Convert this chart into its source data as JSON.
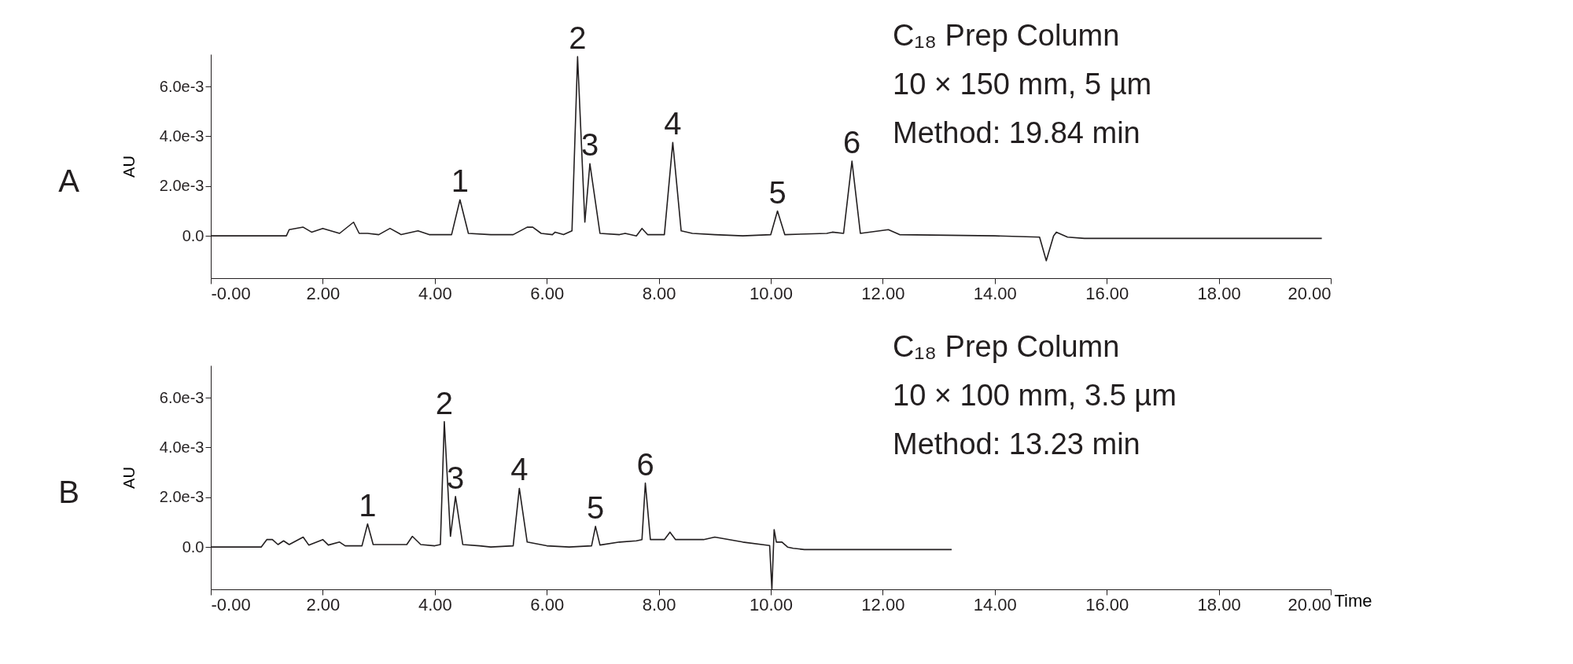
{
  "chart_data": [
    {
      "type": "line",
      "title": "A",
      "ylabel": "AU",
      "xlim": [
        0,
        20
      ],
      "ylim": [
        -0.0017,
        0.0073
      ],
      "xticks": [
        {
          "value": 0,
          "label": "-0.00"
        },
        {
          "value": 2,
          "label": "2.00"
        },
        {
          "value": 4,
          "label": "4.00"
        },
        {
          "value": 6,
          "label": "6.00"
        },
        {
          "value": 8,
          "label": "8.00"
        },
        {
          "value": 10,
          "label": "10.00"
        },
        {
          "value": 12,
          "label": "12.00"
        },
        {
          "value": 14,
          "label": "14.00"
        },
        {
          "value": 16,
          "label": "16.00"
        },
        {
          "value": 18,
          "label": "18.00"
        },
        {
          "value": 20,
          "label": "20.00"
        }
      ],
      "yticks": [
        {
          "value": 0,
          "label": "0.0"
        },
        {
          "value": 0.002,
          "label": "2.0e-3"
        },
        {
          "value": 0.004,
          "label": "4.0e-3"
        },
        {
          "value": 0.006,
          "label": "6.0e-3"
        }
      ],
      "grid": false,
      "line_style": "solid",
      "marker": "none",
      "series": [
        {
          "color": "#231f20",
          "x": [
            0,
            1.35,
            1.4,
            1.65,
            1.8,
            2.0,
            2.3,
            2.55,
            2.65,
            2.8,
            3.0,
            3.2,
            3.4,
            3.7,
            3.9,
            4.3,
            4.45,
            4.6,
            5.0,
            5.4,
            5.65,
            5.75,
            5.9,
            6.1,
            6.15,
            6.3,
            6.45,
            6.55,
            6.68,
            6.77,
            6.95,
            7.3,
            7.4,
            7.6,
            7.7,
            7.8,
            8.1,
            8.25,
            8.4,
            8.6,
            9.0,
            9.5,
            10.0,
            10.12,
            10.25,
            11.0,
            11.1,
            11.3,
            11.45,
            11.6,
            12.1,
            12.3,
            14.0,
            14.8,
            14.92,
            15.05,
            15.1,
            15.3,
            15.6,
            19.84
          ],
          "values": [
            0,
            0,
            0.00025,
            0.00035,
            0.00015,
            0.0003,
            0.0001,
            0.00055,
            0.0001,
            0.0001,
            5e-05,
            0.0003,
            5e-05,
            0.0002,
            5e-05,
            5e-05,
            0.00145,
            0.0001,
            5e-05,
            5e-05,
            0.00035,
            0.00035,
            0.0001,
            5e-05,
            0.00015,
            5e-05,
            0.0002,
            0.0072,
            0.00055,
            0.0029,
            0.0001,
            5e-05,
            0.0001,
            0,
            0.0003,
            5e-05,
            5e-05,
            0.00375,
            0.0002,
            0.0001,
            5e-05,
            0,
            5e-05,
            0.001,
            5e-05,
            0.0001,
            0.00015,
            0.0001,
            0.003,
            0.0001,
            0.00025,
            5e-05,
            0,
            -5e-05,
            -0.001,
            0,
            0.00015,
            -5e-05,
            -0.0001,
            -0.0001
          ]
        }
      ],
      "annotations": [
        {
          "text": "1",
          "x": 4.45,
          "y": 0.00145
        },
        {
          "text": "2",
          "x": 6.55,
          "y": 0.0072
        },
        {
          "text": "3",
          "x": 6.77,
          "y": 0.0029
        },
        {
          "text": "4",
          "x": 8.25,
          "y": 0.00375
        },
        {
          "text": "5",
          "x": 10.12,
          "y": 0.001
        },
        {
          "text": "6",
          "x": 11.45,
          "y": 0.003
        },
        "C₁₈ Prep Column",
        "10 × 150 mm, 5 µm",
        "Method: 19.84 min"
      ]
    },
    {
      "type": "line",
      "title": "B",
      "ylabel": "AU",
      "xlabel": "Time",
      "xlim": [
        0,
        20
      ],
      "ylim": [
        -0.0017,
        0.0073
      ],
      "xticks": [
        {
          "value": 0,
          "label": "-0.00"
        },
        {
          "value": 2,
          "label": "2.00"
        },
        {
          "value": 4,
          "label": "4.00"
        },
        {
          "value": 6,
          "label": "6.00"
        },
        {
          "value": 8,
          "label": "8.00"
        },
        {
          "value": 10,
          "label": "10.00"
        },
        {
          "value": 12,
          "label": "12.00"
        },
        {
          "value": 14,
          "label": "14.00"
        },
        {
          "value": 16,
          "label": "16.00"
        },
        {
          "value": 18,
          "label": "18.00"
        },
        {
          "value": 20,
          "label": "20.00"
        }
      ],
      "yticks": [
        {
          "value": 0,
          "label": "0.0"
        },
        {
          "value": 0.002,
          "label": "2.0e-3"
        },
        {
          "value": 0.004,
          "label": "4.0e-3"
        },
        {
          "value": 0.006,
          "label": "6.0e-3"
        }
      ],
      "grid": false,
      "line_style": "solid",
      "marker": "none",
      "series": [
        {
          "color": "#231f20",
          "x": [
            0,
            0.9,
            1.0,
            1.1,
            1.2,
            1.3,
            1.4,
            1.65,
            1.75,
            2.0,
            2.1,
            2.3,
            2.4,
            2.7,
            2.8,
            2.9,
            3.5,
            3.6,
            3.75,
            4.0,
            4.1,
            4.17,
            4.28,
            4.37,
            4.5,
            4.8,
            5.0,
            5.4,
            5.51,
            5.65,
            6.0,
            6.4,
            6.8,
            6.87,
            6.95,
            7.3,
            7.6,
            7.7,
            7.76,
            7.85,
            8.1,
            8.2,
            8.3,
            8.8,
            9.0,
            9.5,
            9.98,
            10.02,
            10.06,
            10.1,
            10.2,
            10.3,
            10.4,
            10.6,
            11.5,
            13.23
          ],
          "values": [
            0,
            0,
            0.0003,
            0.0003,
            0.0001,
            0.00025,
            0.0001,
            0.0004,
            8e-05,
            0.0003,
            8e-05,
            0.0002,
            5e-05,
            5e-05,
            0.00093,
            0.0001,
            0.0001,
            0.00043,
            0.0001,
            5e-05,
            0.0001,
            0.00504,
            0.00043,
            0.00203,
            0.0001,
            5e-05,
            0,
            5e-05,
            0.00236,
            0.0002,
            5e-05,
            0,
            5e-05,
            0.00083,
            8e-05,
            0.0002,
            0.00025,
            0.0003,
            0.00257,
            0.0003,
            0.0003,
            0.0006,
            0.0003,
            0.0003,
            0.0004,
            0.0002,
            6e-05,
            -0.0017,
            0.0007,
            0.0002,
            0.0002,
            0,
            -5e-05,
            -0.0001,
            -0.0001,
            -0.0001
          ]
        }
      ],
      "annotations": [
        {
          "text": "1",
          "x": 2.8,
          "y": 0.00093
        },
        {
          "text": "2",
          "x": 4.17,
          "y": 0.00504
        },
        {
          "text": "3",
          "x": 4.37,
          "y": 0.00203
        },
        {
          "text": "4",
          "x": 5.51,
          "y": 0.00236
        },
        {
          "text": "5",
          "x": 6.87,
          "y": 0.00083
        },
        {
          "text": "6",
          "x": 7.76,
          "y": 0.00257
        },
        "C₁₈ Prep Column",
        "10 × 100 mm, 3.5 µm",
        "Method: 13.23 min"
      ]
    }
  ]
}
